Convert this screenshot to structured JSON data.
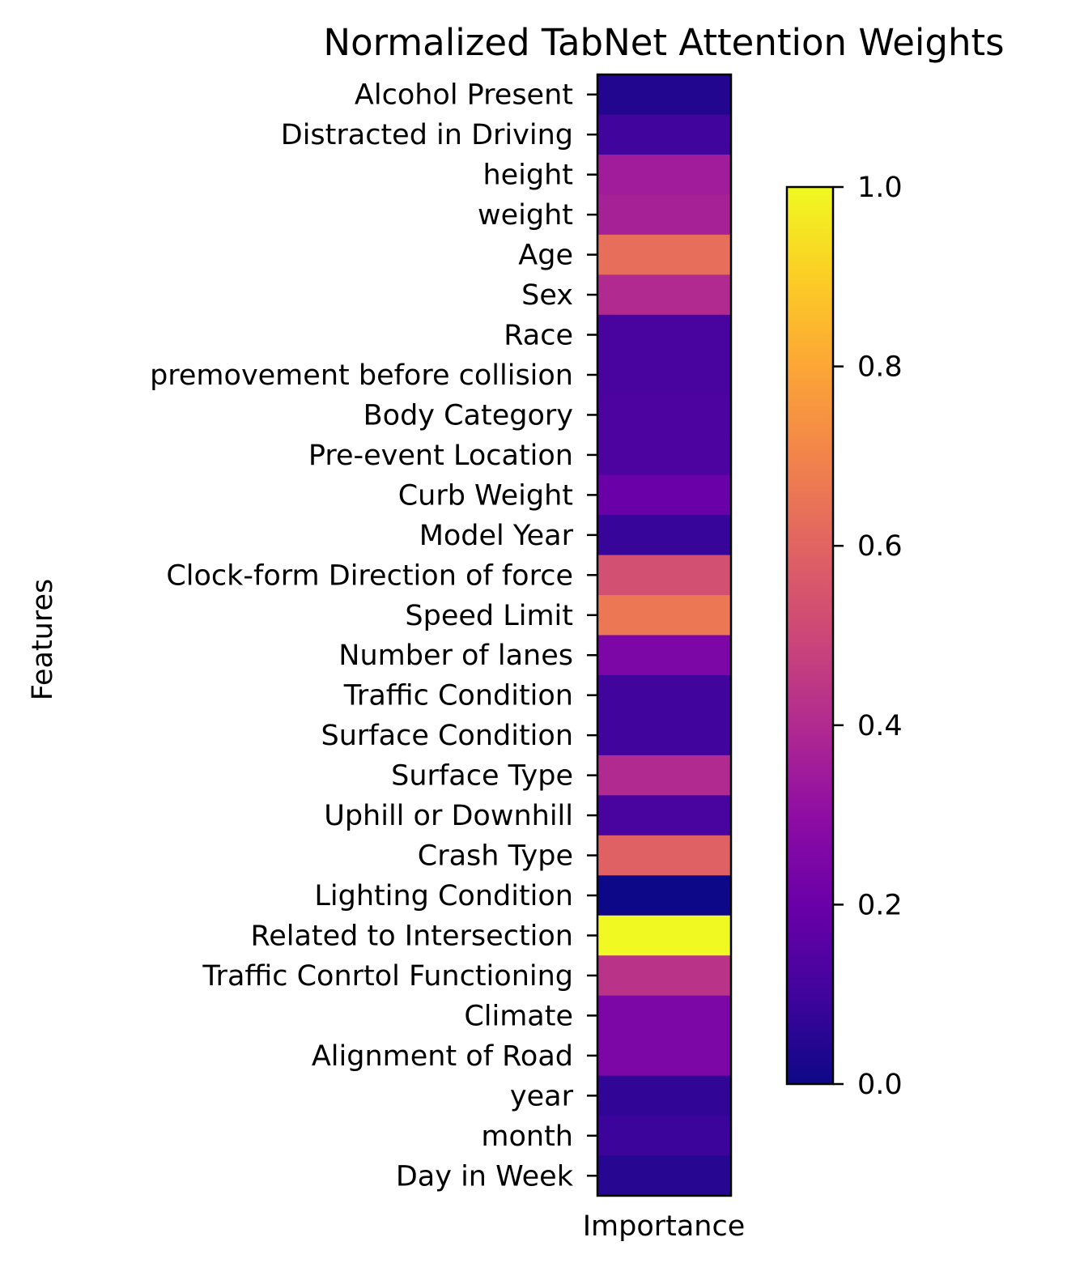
{
  "chart_data": {
    "type": "heatmap",
    "title": "Normalized TabNet Attention Weights",
    "xlabel": "Importance",
    "ylabel": "Features",
    "colormap": "plasma",
    "categories": [
      "Alcohol Present",
      "Distracted in Driving",
      "height",
      "weight",
      "Age",
      "Sex",
      "Race",
      "premovement before collision",
      "Body Category",
      "Pre-event Location",
      "Curb Weight",
      "Model Year",
      "Clock-form Direction of force",
      "Speed Limit",
      "Number of lanes",
      "Traffic Condition",
      "Surface Condition",
      "Surface Type",
      "Uphill or Downhill",
      "Crash Type",
      "Lighting Condition",
      "Related to Intersection",
      "Traffic Conrtol Functioning",
      "Climate",
      "Alignment of Road",
      "year",
      "month",
      "Day in Week"
    ],
    "values": [
      0.04,
      0.1,
      0.35,
      0.37,
      0.63,
      0.4,
      0.12,
      0.12,
      0.13,
      0.13,
      0.2,
      0.08,
      0.53,
      0.66,
      0.25,
      0.1,
      0.1,
      0.4,
      0.12,
      0.59,
      0.0,
      1.0,
      0.43,
      0.25,
      0.25,
      0.07,
      0.09,
      0.05
    ],
    "colorbar": {
      "min": 0.0,
      "max": 1.0,
      "ticks": [
        "0.0",
        "0.2",
        "0.4",
        "0.6",
        "0.8",
        "1.0"
      ]
    },
    "grid": false
  }
}
